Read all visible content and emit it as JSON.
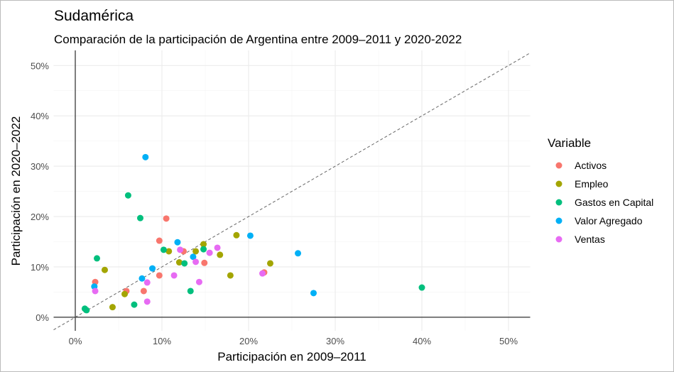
{
  "chart_data": {
    "type": "scatter",
    "title": "Sudamérica",
    "subtitle": "Comparación de la participación de Argentina entre 2009–2011 y 2020-2022",
    "xlabel": "Participación en 2009–2011",
    "ylabel": "Participación en 2020–2022",
    "xlim": [
      -2.5,
      52.5
    ],
    "ylim": [
      -2.7,
      53
    ],
    "xticks": [
      0,
      10,
      20,
      30,
      40,
      50
    ],
    "yticks": [
      0,
      10,
      20,
      30,
      40,
      50
    ],
    "xtick_labels": [
      "0%",
      "10%",
      "20%",
      "30%",
      "40%",
      "50%"
    ],
    "ytick_labels": [
      "0%",
      "10%",
      "20%",
      "30%",
      "40%",
      "50%"
    ],
    "grid": true,
    "reference_line": "y = x (dashed)",
    "legend": {
      "title": "Variable",
      "placement": "right"
    },
    "series": [
      {
        "name": "Activos",
        "color": "#F8766D",
        "points": [
          [
            2.3,
            7.0
          ],
          [
            5.9,
            5.2
          ],
          [
            7.9,
            5.2
          ],
          [
            9.7,
            8.3
          ],
          [
            9.7,
            15.2
          ],
          [
            10.5,
            19.6
          ],
          [
            12.5,
            13.1
          ],
          [
            14.9,
            10.8
          ],
          [
            21.8,
            8.9
          ]
        ]
      },
      {
        "name": "Empleo",
        "color": "#A3A500",
        "points": [
          [
            3.4,
            9.4
          ],
          [
            4.3,
            2.0
          ],
          [
            5.7,
            4.6
          ],
          [
            10.8,
            13.1
          ],
          [
            12.0,
            10.9
          ],
          [
            13.9,
            13.1
          ],
          [
            14.8,
            14.5
          ],
          [
            16.7,
            12.4
          ],
          [
            18.6,
            16.3
          ],
          [
            17.9,
            8.3
          ],
          [
            22.5,
            10.7
          ]
        ]
      },
      {
        "name": "Gastos en Capital",
        "color": "#00BF7D",
        "points": [
          [
            1.1,
            1.7
          ],
          [
            1.3,
            1.4
          ],
          [
            2.5,
            11.7
          ],
          [
            6.1,
            24.2
          ],
          [
            7.5,
            19.7
          ],
          [
            10.2,
            13.4
          ],
          [
            6.8,
            2.5
          ],
          [
            12.6,
            10.7
          ],
          [
            13.3,
            5.2
          ],
          [
            14.8,
            13.5
          ],
          [
            40.0,
            5.9
          ]
        ]
      },
      {
        "name": "Valor Agregado",
        "color": "#00B0F6",
        "points": [
          [
            8.1,
            31.8
          ],
          [
            2.2,
            6.1
          ],
          [
            7.7,
            7.7
          ],
          [
            8.9,
            9.7
          ],
          [
            11.8,
            14.9
          ],
          [
            13.6,
            12.0
          ],
          [
            20.2,
            16.2
          ],
          [
            25.7,
            12.7
          ],
          [
            27.5,
            4.8
          ]
        ]
      },
      {
        "name": "Ventas",
        "color": "#E76BF3",
        "points": [
          [
            2.3,
            5.2
          ],
          [
            8.3,
            6.9
          ],
          [
            8.3,
            3.1
          ],
          [
            11.4,
            8.3
          ],
          [
            12.1,
            13.4
          ],
          [
            13.9,
            11.0
          ],
          [
            15.5,
            12.8
          ],
          [
            16.4,
            13.8
          ],
          [
            14.3,
            7.0
          ],
          [
            21.6,
            8.7
          ]
        ]
      }
    ]
  }
}
